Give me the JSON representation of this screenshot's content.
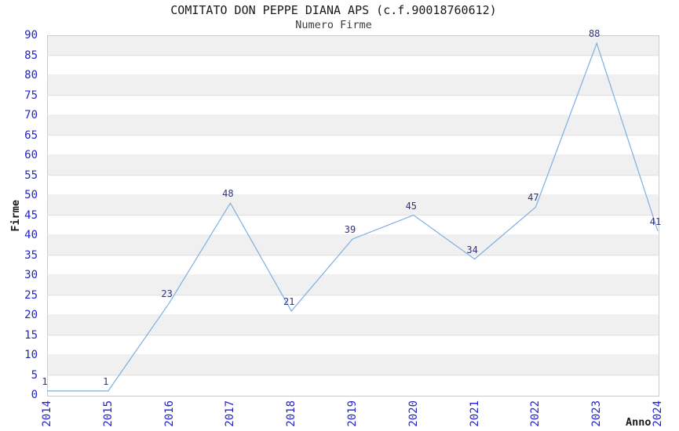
{
  "chart_data": {
    "type": "line",
    "title": "COMITATO DON PEPPE DIANA APS (c.f.90018760612)",
    "subtitle": "Numero Firme",
    "xlabel": "Anno",
    "ylabel": "Firme",
    "x": [
      2014,
      2015,
      2016,
      2017,
      2018,
      2019,
      2020,
      2021,
      2022,
      2023,
      2024
    ],
    "values": [
      1,
      1,
      23,
      48,
      21,
      39,
      45,
      34,
      47,
      88,
      41
    ],
    "series_name": "Numero Firme",
    "ylim": [
      0,
      90
    ],
    "ytick_step": 5,
    "xtick_rotation_deg": 90,
    "grid": "horizontal-bands-alternating",
    "legend": "none",
    "markers": "none",
    "point_labels_visible": true,
    "colors": {
      "line": "#7CAFE2",
      "tick_label": "#2222CC",
      "point_label": "#333377",
      "band_fill": "#F0F0F0",
      "band_alt_fill": "#FFFFFF",
      "gridline": "#E2E2E2",
      "plot_border": "#CCCCCC",
      "title": "#1A1A1A",
      "subtitle": "#3C3C3C",
      "axis_label": "#1A1A1A",
      "background": "#FFFFFF"
    }
  }
}
